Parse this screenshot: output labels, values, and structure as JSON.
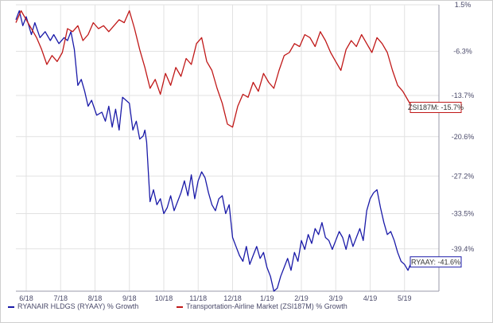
{
  "chart_data": {
    "type": "line",
    "title": "",
    "xlabel": "",
    "ylabel": "",
    "ylim": [
      -46.5,
      1.5
    ],
    "y_ticks": [
      "1.5%",
      "-6.3%",
      "-13.7%",
      "-20.6%",
      "-27.2%",
      "-33.5%",
      "-39.4%"
    ],
    "y_tick_values": [
      1.5,
      -6.3,
      -13.7,
      -20.6,
      -27.2,
      -33.5,
      -39.4
    ],
    "x_ticks": [
      "6/18",
      "7/18",
      "8/18",
      "9/18",
      "10/18",
      "11/18",
      "12/18",
      "1/19",
      "2/19",
      "3/19",
      "4/19",
      "5/19"
    ],
    "x_tick_values": [
      0.3,
      1.3,
      2.3,
      3.3,
      4.3,
      5.3,
      6.3,
      7.3,
      8.3,
      9.3,
      10.3,
      11.3
    ],
    "xlim": [
      0,
      12.3
    ],
    "grid": true,
    "series": [
      {
        "name": "RYANAIR HLDGS (RYAAY) % Growth",
        "color": "#1a1aa8",
        "end_label": "RYAAY: -41.6%",
        "x": [
          0,
          0.1,
          0.2,
          0.3,
          0.45,
          0.55,
          0.7,
          0.85,
          1.0,
          1.1,
          1.25,
          1.4,
          1.5,
          1.6,
          1.7,
          1.8,
          1.9,
          2.0,
          2.1,
          2.2,
          2.35,
          2.5,
          2.6,
          2.7,
          2.8,
          2.9,
          3.0,
          3.1,
          3.2,
          3.3,
          3.4,
          3.5,
          3.6,
          3.7,
          3.75,
          3.8,
          3.9,
          4.0,
          4.1,
          4.2,
          4.3,
          4.4,
          4.5,
          4.6,
          4.7,
          4.8,
          4.9,
          5.0,
          5.1,
          5.2,
          5.3,
          5.4,
          5.5,
          5.6,
          5.7,
          5.8,
          5.9,
          6.0,
          6.1,
          6.2,
          6.3,
          6.4,
          6.5,
          6.6,
          6.7,
          6.8,
          6.9,
          7.0,
          7.1,
          7.2,
          7.3,
          7.4,
          7.5,
          7.6,
          7.7,
          7.8,
          7.9,
          8.0,
          8.1,
          8.2,
          8.3,
          8.4,
          8.5,
          8.6,
          8.7,
          8.8,
          8.9,
          9.0,
          9.1,
          9.2,
          9.3,
          9.4,
          9.5,
          9.6,
          9.7,
          9.8,
          9.9,
          10.0,
          10.1,
          10.2,
          10.3,
          10.4,
          10.5,
          10.6,
          10.7,
          10.8,
          10.9,
          11.0,
          11.1,
          11.2,
          11.3,
          11.4,
          11.5,
          11.6
        ],
        "values": [
          -1.0,
          0.5,
          -2.0,
          -0.5,
          -3.5,
          -1.5,
          -4.0,
          -3.0,
          -4.5,
          -3.5,
          -5.0,
          -4.0,
          -4.5,
          -3.0,
          -6.0,
          -12.0,
          -11.0,
          -13.0,
          -15.5,
          -14.5,
          -17.0,
          -16.5,
          -18.0,
          -15.5,
          -19.0,
          -16.0,
          -19.5,
          -14.0,
          -14.5,
          -15.0,
          -19.5,
          -18.0,
          -21.0,
          -20.5,
          -19.5,
          -21.5,
          -31.5,
          -29.5,
          -32.0,
          -31.0,
          -33.5,
          -32.5,
          -30.5,
          -33.0,
          -31.5,
          -30.0,
          -28.0,
          -30.5,
          -27.0,
          -31.0,
          -28.0,
          -26.5,
          -27.5,
          -30.0,
          -32.0,
          -33.0,
          -31.0,
          -30.5,
          -33.5,
          -32.0,
          -37.5,
          -39.0,
          -40.5,
          -41.5,
          -39.0,
          -42.0,
          -40.5,
          -39.0,
          -41.0,
          -40.0,
          -42.5,
          -44.0,
          -46.5,
          -46.0,
          -44.0,
          -42.5,
          -41.0,
          -43.0,
          -40.0,
          -41.5,
          -38.0,
          -39.5,
          -37.0,
          -38.5,
          -36.0,
          -37.0,
          -35.0,
          -37.5,
          -38.0,
          -39.5,
          -38.0,
          -36.5,
          -37.5,
          -39.5,
          -37.0,
          -39.0,
          -37.5,
          -36.0,
          -38.0,
          -33.0,
          -31.0,
          -30.0,
          -29.5,
          -32.5,
          -35.0,
          -37.0,
          -36.5,
          -38.0,
          -40.0,
          -41.5,
          -42.0,
          -43.0,
          -41.6,
          -41.6
        ]
      },
      {
        "name": "Transportation-Airline Market (ZSI187M) % Growth",
        "color": "#c01818",
        "end_label": "ZSI187M: -15.7%",
        "x": [
          0,
          0.15,
          0.3,
          0.45,
          0.6,
          0.75,
          0.9,
          1.05,
          1.2,
          1.35,
          1.5,
          1.65,
          1.8,
          1.95,
          2.1,
          2.25,
          2.4,
          2.55,
          2.7,
          2.85,
          3.0,
          3.15,
          3.3,
          3.45,
          3.6,
          3.75,
          3.9,
          4.05,
          4.2,
          4.35,
          4.5,
          4.65,
          4.8,
          4.95,
          5.1,
          5.25,
          5.4,
          5.55,
          5.7,
          5.85,
          6.0,
          6.15,
          6.3,
          6.45,
          6.6,
          6.75,
          6.9,
          7.05,
          7.2,
          7.35,
          7.5,
          7.65,
          7.8,
          7.95,
          8.1,
          8.25,
          8.4,
          8.55,
          8.7,
          8.85,
          9.0,
          9.15,
          9.3,
          9.45,
          9.6,
          9.75,
          9.9,
          10.05,
          10.2,
          10.35,
          10.5,
          10.65,
          10.8,
          10.95,
          11.1,
          11.25,
          11.4,
          11.55,
          11.7
        ],
        "values": [
          -1.5,
          0.5,
          -1.0,
          -2.5,
          -4.0,
          -6.0,
          -8.5,
          -7.0,
          -8.0,
          -6.5,
          -2.5,
          -3.0,
          -2.0,
          -4.5,
          -3.5,
          -1.5,
          -2.5,
          -2.0,
          -3.0,
          -2.0,
          -1.0,
          -1.5,
          0.5,
          -2.5,
          -6.0,
          -9.0,
          -12.5,
          -11.0,
          -13.5,
          -10.0,
          -12.0,
          -9.0,
          -10.5,
          -7.5,
          -8.5,
          -5.0,
          -4.0,
          -8.0,
          -9.5,
          -12.5,
          -15.0,
          -18.5,
          -19.0,
          -15.5,
          -13.5,
          -14.0,
          -11.5,
          -13.0,
          -10.0,
          -11.5,
          -12.5,
          -9.5,
          -7.0,
          -6.5,
          -5.0,
          -5.5,
          -3.5,
          -4.0,
          -5.5,
          -3.0,
          -4.5,
          -6.5,
          -8.0,
          -9.5,
          -6.0,
          -4.5,
          -5.5,
          -3.5,
          -5.0,
          -6.5,
          -4.0,
          -5.0,
          -6.5,
          -9.5,
          -12.0,
          -13.0,
          -14.5,
          -16.0,
          -15.7
        ]
      }
    ]
  }
}
